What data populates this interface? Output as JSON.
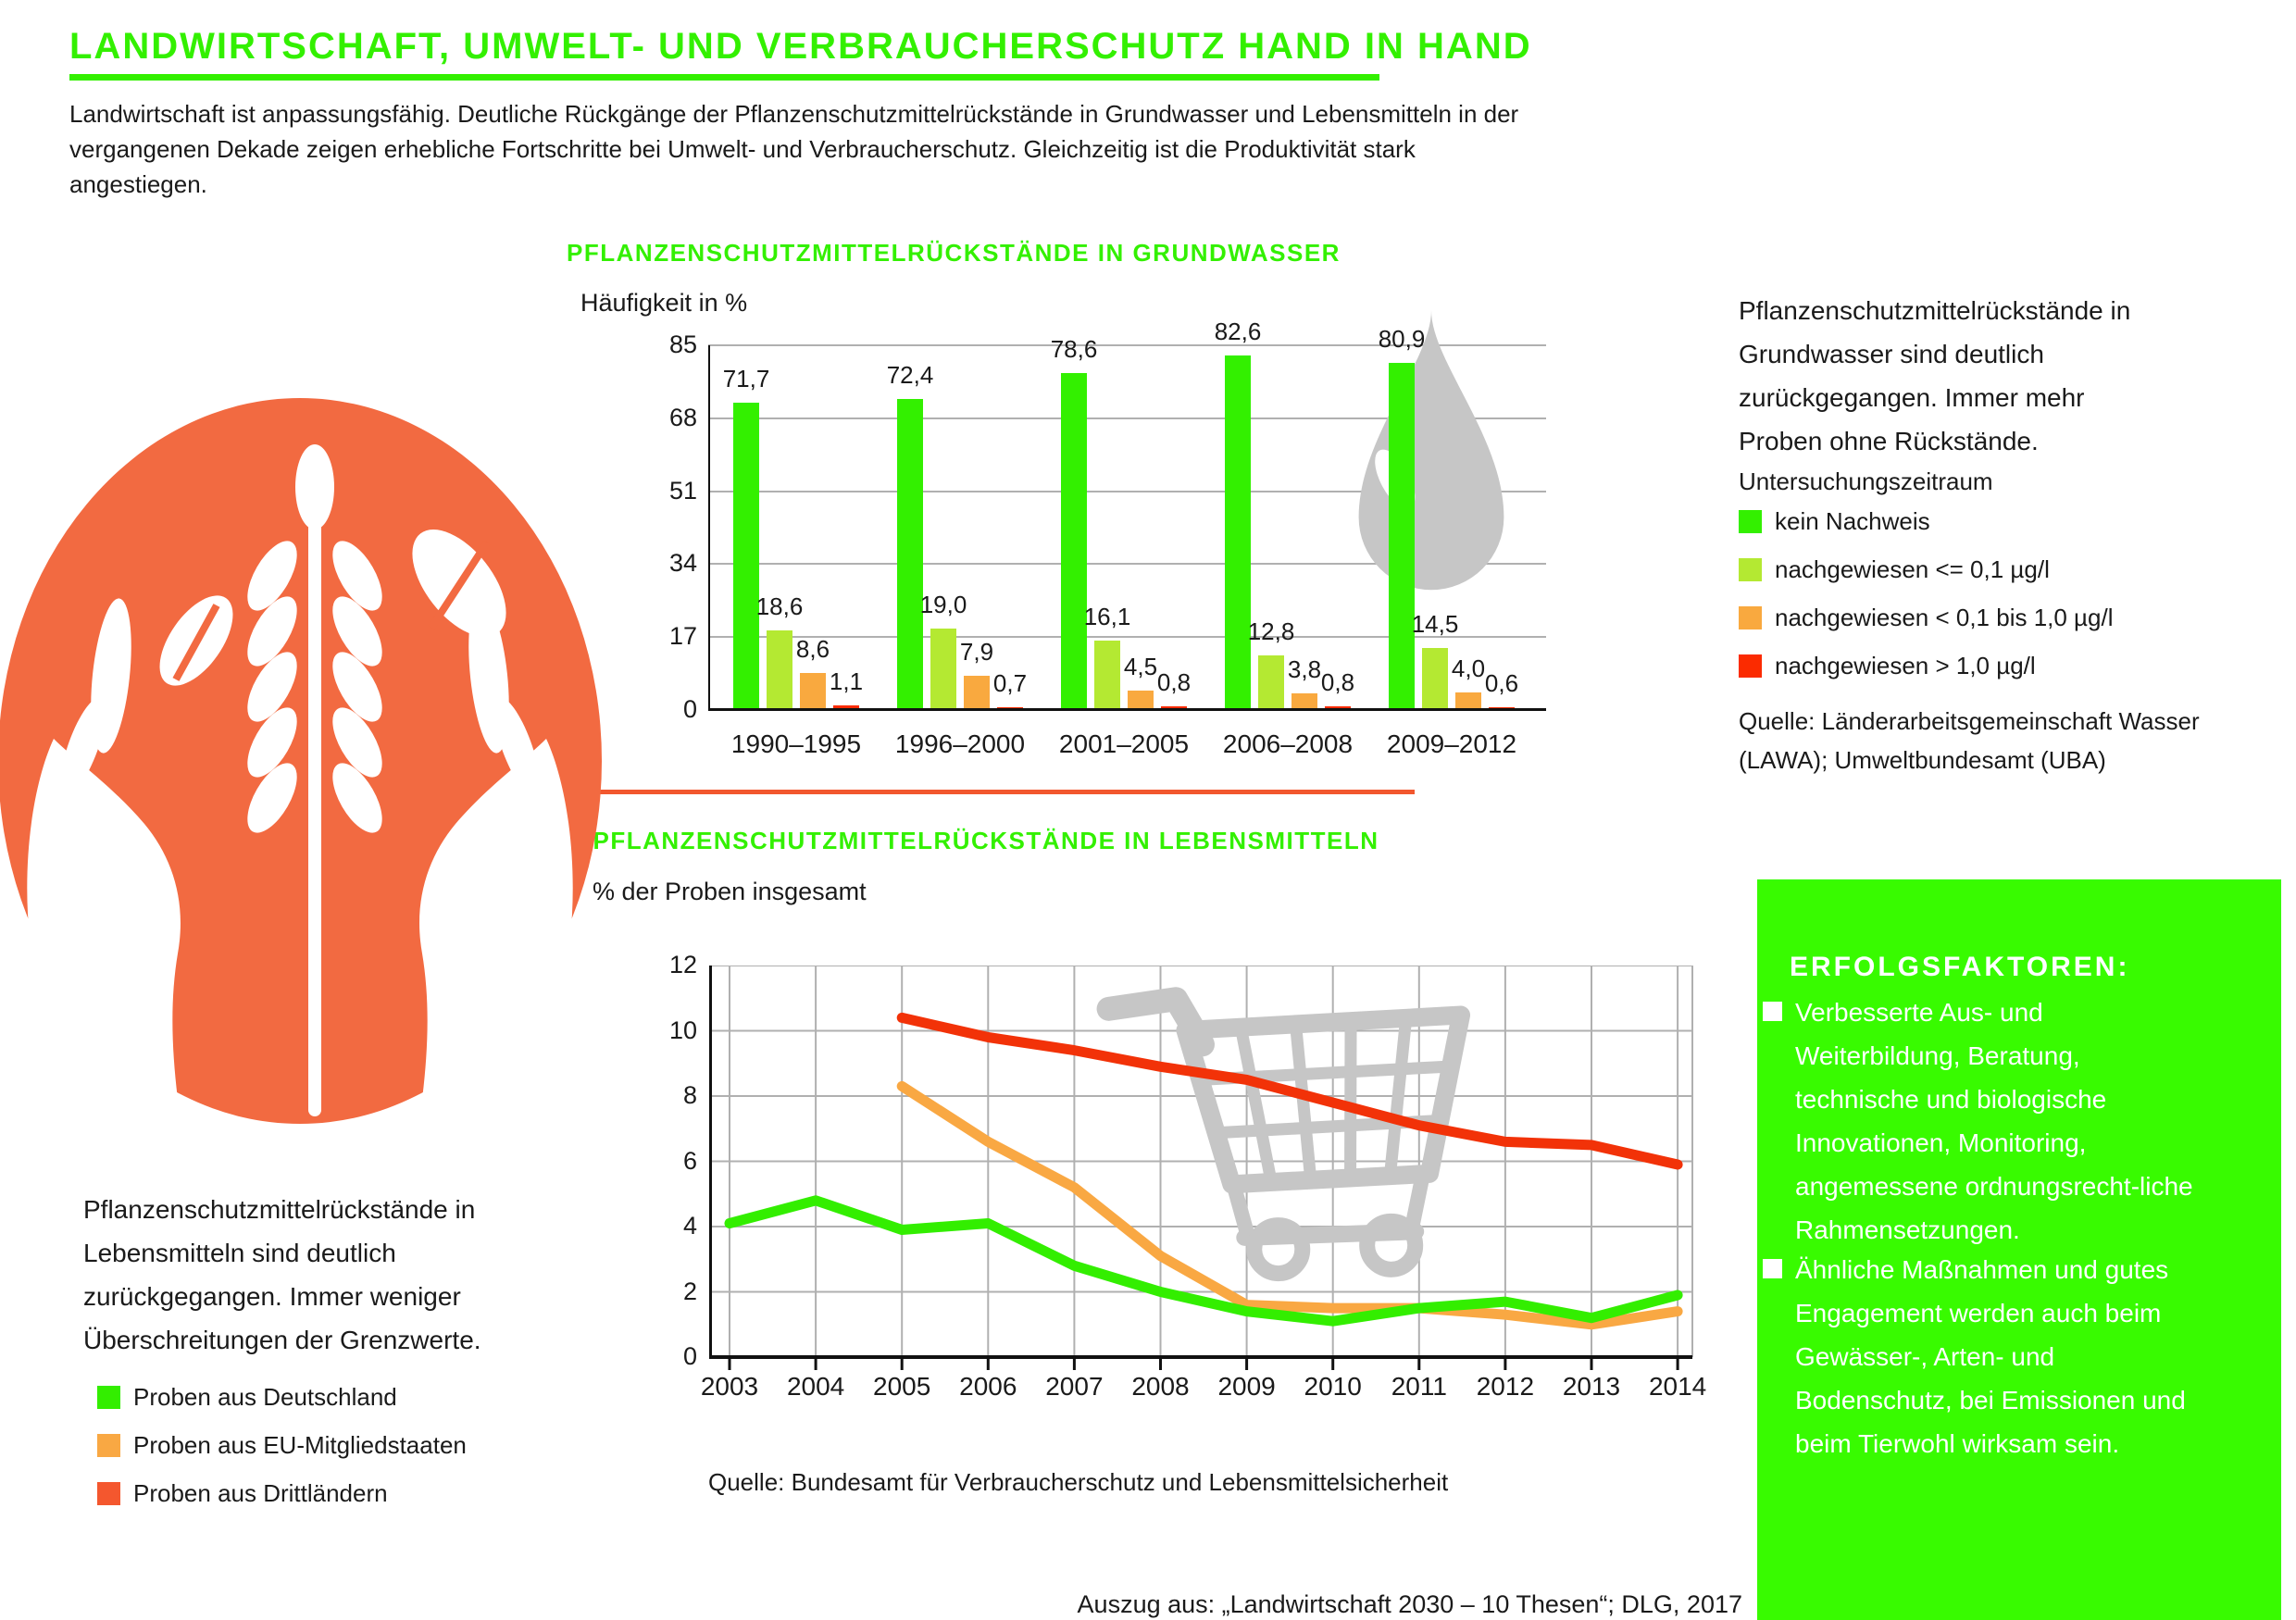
{
  "header": {
    "title": "LANDWIRTSCHAFT, UMWELT- UND VERBRAUCHERSCHUTZ HAND IN HAND",
    "intro": "Landwirtschaft ist anpassungsfähig. Deutliche Rückgänge der Pflanzenschutzmittelrückstände in Grundwasser und Lebensmitteln in der vergangenen Dekade zeigen erhebliche Fortschritte bei Umwelt- und Verbraucherschutz. Gleichzeitig ist die Produktivität stark angestiegen."
  },
  "colors": {
    "green": "#33F000",
    "box_green": "#38FB00",
    "yellow_green": "#B4E932",
    "orange": "#F9A93F",
    "red": "#FB2B00",
    "line_red": "#F23208",
    "swatch_red_orange": "#F4572E",
    "emblem_orange": "#F26A41",
    "divider_orange": "#F2572E",
    "watermark_gray": "#C6C6C6"
  },
  "groundwater_section": {
    "note": "Pflanzenschutzmittelrückstände in Grundwasser sind deutlich zurückgegangen. Immer mehr Proben ohne Rückstände.",
    "legend_title": "Untersuchungszeitraum",
    "source": "Quelle: Länderarbeitsgemeinschaft Wasser (LAWA); Umweltbundesamt (UBA)"
  },
  "food_section": {
    "note": "Pflanzenschutzmittelrückstände in Lebensmitteln sind deutlich zurückgegangen. Immer weniger Überschreitungen der Grenzwerte.",
    "source": "Quelle: Bundesamt für Verbraucherschutz und Lebensmittelsicherheit"
  },
  "success_box": {
    "title": "ERFOLGSFAKTOREN:",
    "bullets": [
      "Verbesserte Aus- und Weiterbildung, Beratung, technische und biologische Innovationen, Monitoring, angemessene ordnungsrecht-liche Rahmensetzungen.",
      "Ähnliche Maßnahmen und gutes Engagement werden auch beim Gewässer-, Arten- und Bodenschutz, bei Emissionen und beim Tierwohl wirksam sein."
    ]
  },
  "attribution": "Auszug aus: „Landwirtschaft 2030 – 10 Thesen“; DLG, 2017",
  "chart_data": [
    {
      "type": "bar",
      "title": "PFLANZENSCHUTZMITTELRÜCKSTÄNDE IN GRUNDWASSER",
      "ylabel": "Häufigkeit in %",
      "ylim": [
        0,
        85
      ],
      "yticks": [
        0,
        17,
        34,
        51,
        68,
        85
      ],
      "grid": "horizontal",
      "legend_position": "right",
      "categories": [
        "1990–1995",
        "1996–2000",
        "2001–2005",
        "2006–2008",
        "2009–2012"
      ],
      "series": [
        {
          "name": "kein Nachweis",
          "color": "#33F000",
          "values": [
            71.7,
            72.4,
            78.6,
            82.6,
            80.9
          ],
          "labels": [
            "71,7",
            "72,4",
            "78,6",
            "82,6",
            "80,9"
          ]
        },
        {
          "name": "nachgewiesen <= 0,1 µg/l",
          "color": "#B4E932",
          "values": [
            18.6,
            19.0,
            16.1,
            12.8,
            14.5
          ],
          "labels": [
            "18,6",
            "19,0",
            "16,1",
            "12,8",
            "14,5"
          ]
        },
        {
          "name": "nachgewiesen < 0,1 bis 1,0 µg/l",
          "color": "#F9A93F",
          "values": [
            8.6,
            7.9,
            4.5,
            3.8,
            4.0
          ],
          "labels": [
            "8,6",
            "7,9",
            "4,5",
            "3,8",
            "4,0"
          ]
        },
        {
          "name": "nachgewiesen > 1,0 µg/l",
          "color": "#FB2B00",
          "values": [
            1.1,
            0.7,
            0.8,
            0.8,
            0.6
          ],
          "labels": [
            "1,1",
            "0,7",
            "0,8",
            "0,8",
            "0,6"
          ]
        }
      ]
    },
    {
      "type": "line",
      "title": "PFLANZENSCHUTZMITTELRÜCKSTÄNDE IN LEBENSMITTELN",
      "ylabel": "% der Proben insgesamt",
      "ylim": [
        0,
        12
      ],
      "yticks": [
        0,
        2,
        4,
        6,
        8,
        10,
        12
      ],
      "grid": "both",
      "x": [
        "2003",
        "2004",
        "2005",
        "2006",
        "2007",
        "2008",
        "2009",
        "2010",
        "2011",
        "2012",
        "2013",
        "2014"
      ],
      "series": [
        {
          "name": "Proben aus Deutschland",
          "color": "#33EE00",
          "swatch": "#33EE00",
          "values": [
            4.1,
            4.8,
            3.9,
            4.1,
            2.8,
            2.0,
            1.4,
            1.1,
            1.5,
            1.7,
            1.2,
            1.9
          ]
        },
        {
          "name": "Proben aus EU-Mitgliedstaaten",
          "color": "#F9A843",
          "swatch": "#F9A843",
          "values": [
            null,
            null,
            8.3,
            6.6,
            5.2,
            3.1,
            1.6,
            1.5,
            1.5,
            1.3,
            1.0,
            1.4
          ]
        },
        {
          "name": "Proben aus Drittländern",
          "color": "#F23208",
          "swatch": "#F4572E",
          "values": [
            null,
            null,
            10.4,
            9.8,
            9.4,
            8.9,
            8.5,
            7.8,
            7.1,
            6.6,
            6.5,
            5.9
          ]
        }
      ]
    }
  ]
}
